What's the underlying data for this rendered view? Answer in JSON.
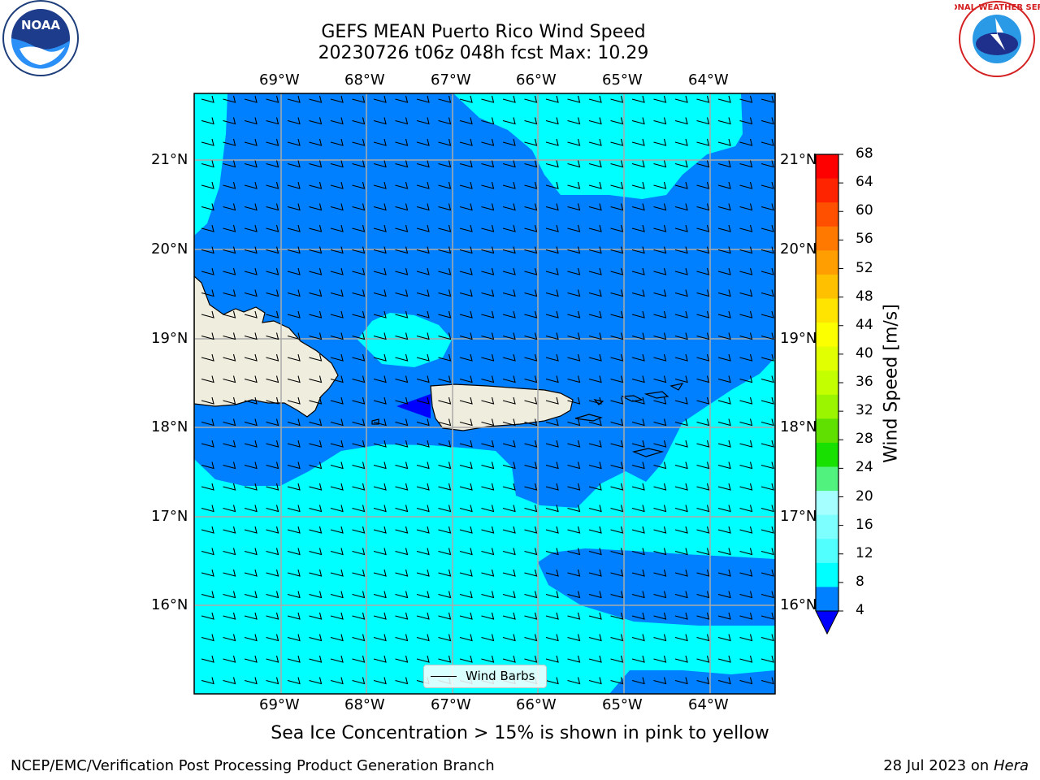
{
  "title_line1": "GEFS MEAN Puerto Rico Wind Speed",
  "title_line2": "20230726 t06z 048h fcst   Max: 10.29",
  "lon_labels": [
    "69°W",
    "68°W",
    "67°W",
    "66°W",
    "65°W",
    "64°W"
  ],
  "lat_labels": [
    "21°N",
    "20°N",
    "19°N",
    "18°N",
    "17°N",
    "16°N"
  ],
  "colorbar": {
    "title": "Wind Speed [m/s]",
    "ticks": [
      "68",
      "64",
      "60",
      "56",
      "52",
      "48",
      "44",
      "40",
      "36",
      "32",
      "28",
      "24",
      "20",
      "16",
      "12",
      "8",
      "4"
    ],
    "colors_top_to_bottom": [
      "#ff0000",
      "#ff2400",
      "#ff5000",
      "#ff7800",
      "#ff9e00",
      "#ffc000",
      "#ffe400",
      "#fcff00",
      "#e1ff00",
      "#c4ff00",
      "#9bf400",
      "#5fe000",
      "#18e000",
      "#52f27e",
      "#a6ffff",
      "#7dffff",
      "#52ffff",
      "#00ffff",
      "#0080ff"
    ],
    "under_color": "#0000ff"
  },
  "map": {
    "colors": {
      "ocean_low": "#0080ff",
      "ocean_mid": "#00ffff",
      "land": "#efeddd",
      "coast": "#000000",
      "min_arrow": "#0000ff"
    }
  },
  "legend": {
    "label": "Wind Barbs"
  },
  "caption": "Sea Ice Concentration > 15% is shown in pink to yellow",
  "footer_left": "NCEP/EMC/Verification Post Processing Product Generation Branch",
  "footer_right_prefix": "28 Jul 2023 on ",
  "footer_right_host": "Hera",
  "logos": {
    "left": "noaa-logo",
    "left_text": "NOAA",
    "right": "nws-logo",
    "right_text": "NATIONAL WEATHER SERVICE"
  }
}
